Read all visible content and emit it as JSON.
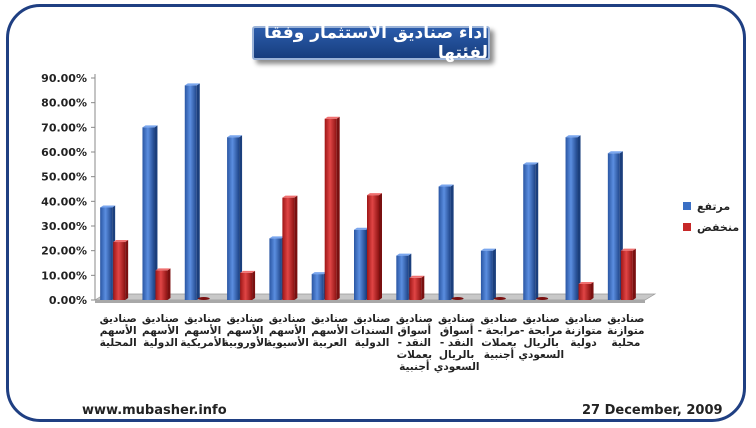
{
  "title": "اداء صناديق الاستثمار وفقا لفئتها",
  "footer": {
    "website": "www.mubasher.info",
    "date": "27 December, 2009"
  },
  "colors": {
    "high": "#3a6fc4",
    "low": "#c62828",
    "frame": "#1f3f82"
  },
  "chart_data": {
    "type": "bar",
    "title": "اداء صناديق الاستثمار وفقا لفئتها",
    "ylim": [
      0,
      90
    ],
    "yticks": [
      "0.00%",
      "10.00%",
      "20.00%",
      "30.00%",
      "40.00%",
      "50.00%",
      "60.00%",
      "70.00%",
      "80.00%",
      "90.00%"
    ],
    "categories": [
      [
        "صناديق",
        "الأسهم",
        "المحلية"
      ],
      [
        "صناديق",
        "الأسهم",
        "الدولية"
      ],
      [
        "صناديق",
        "الأسهم",
        "الأمريكية"
      ],
      [
        "صناديق",
        "الأسهم",
        "الأوروبية"
      ],
      [
        "صناديق",
        "الأسهم",
        "الأسيوية"
      ],
      [
        "صناديق",
        "الأسهم",
        "العربية"
      ],
      [
        "صناديق",
        "السندات",
        "الدولية"
      ],
      [
        "صناديق",
        "أسواق",
        "النقد -",
        "بعملات",
        "أجنبية"
      ],
      [
        "صناديق",
        "أسواق",
        "النقد -",
        "بالريال",
        "السعودي"
      ],
      [
        "صناديق",
        "مرابحة -",
        "بعملات",
        "أجنبية"
      ],
      [
        "صناديق",
        "مرابحة -",
        "بالريال",
        "السعودي"
      ],
      [
        "صناديق",
        "متوازنة",
        "دولية"
      ],
      [
        "صناديق",
        "متوازنة",
        "محلية"
      ]
    ],
    "series": [
      {
        "name": "مرتفع",
        "color": "#3a6fc4",
        "values": [
          37.5,
          70,
          87,
          66,
          25,
          10.5,
          28.5,
          18,
          46,
          20,
          55,
          66,
          59.5
        ]
      },
      {
        "name": "منخفض",
        "color": "#c62828",
        "values": [
          23.5,
          12,
          0,
          11,
          41.5,
          73.5,
          42.5,
          9,
          0,
          0,
          0,
          6.5,
          20
        ]
      }
    ],
    "legend_position": "right",
    "grid": false
  }
}
